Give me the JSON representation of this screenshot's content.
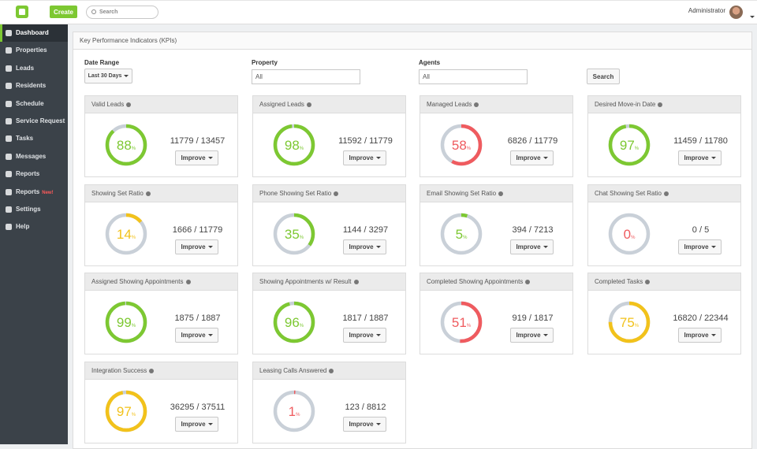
{
  "topbar": {
    "create_button": "Create",
    "search_placeholder": "Search",
    "user": "Administrator"
  },
  "sidebar": {
    "items": [
      {
        "label": "Dashboard",
        "active": true
      },
      {
        "label": "Properties"
      },
      {
        "label": "Leads"
      },
      {
        "label": "Residents"
      },
      {
        "label": "Schedule"
      },
      {
        "label": "Service Request"
      },
      {
        "label": "Tasks"
      },
      {
        "label": "Messages"
      },
      {
        "label": "Reports"
      },
      {
        "label": "Reports",
        "badge": "New!"
      },
      {
        "label": "Settings"
      },
      {
        "label": "Help"
      }
    ]
  },
  "panel": {
    "title": "Key Performance Indicators (KPIs)",
    "filters": [
      {
        "label": "Date Range",
        "value": "Last 30 Days"
      },
      {
        "label": "Property",
        "value": "All"
      },
      {
        "label": "Agents",
        "value": "All"
      }
    ],
    "search_button": "Search",
    "percent_sign": "%",
    "improve_button": "Improve",
    "kpis": [
      {
        "title": "Valid Leads",
        "percent": 88,
        "ratio": "11779 / 13457",
        "color": "#7dc832"
      },
      {
        "title": "Assigned Leads",
        "percent": 98,
        "ratio": "11592 / 11779",
        "color": "#7dc832"
      },
      {
        "title": "Managed Leads",
        "percent": 58,
        "ratio": "6826 / 11779",
        "color": "#ef5b5f"
      },
      {
        "title": "Desired Move-in Date",
        "percent": 97,
        "ratio": "11459 / 11780",
        "color": "#7dc832"
      },
      {
        "title": "Showing Set Ratio",
        "percent": 14,
        "ratio": "1666 / 11779",
        "color": "#f2c21b"
      },
      {
        "title": "Phone Showing Set Ratio",
        "percent": 35,
        "ratio": "1144 / 3297",
        "color": "#7dc832"
      },
      {
        "title": "Email Showing Set Ratio",
        "percent": 5,
        "ratio": "394 / 7213",
        "color": "#7dc832"
      },
      {
        "title": "Chat Showing Set Ratio",
        "percent": 0,
        "ratio": "0 / 5",
        "color": "#ef5b5f"
      },
      {
        "title": "Assigned Showing Appointments",
        "percent": 99,
        "ratio": "1875 / 1887",
        "color": "#7dc832"
      },
      {
        "title": "Showing Appointments w/ Result",
        "percent": 96,
        "ratio": "1817 / 1887",
        "color": "#7dc832"
      },
      {
        "title": "Completed Showing Appointments",
        "percent": 51,
        "ratio": "919 / 1817",
        "color": "#ef5b5f"
      },
      {
        "title": "Completed Tasks",
        "percent": 75,
        "ratio": "16820 / 22344",
        "color": "#f2c21b"
      },
      {
        "title": "Integration Success",
        "percent": 97,
        "ratio": "36295 / 37511",
        "color": "#f2c21b"
      },
      {
        "title": "Leasing Calls Answered",
        "percent": 1,
        "ratio": "123 / 8812",
        "color": "#ef5b5f"
      }
    ]
  }
}
